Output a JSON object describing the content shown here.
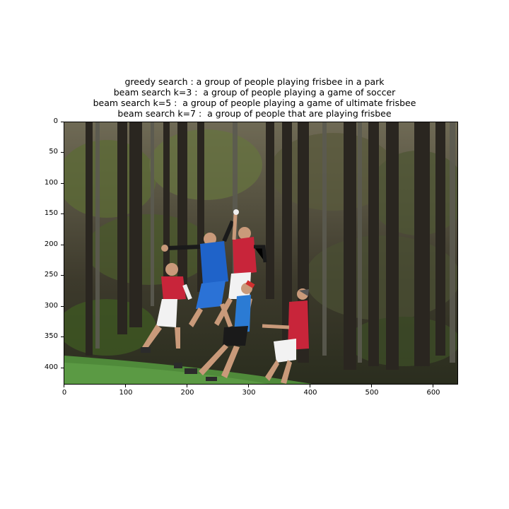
{
  "figure": {
    "title_lines": [
      "greedy search : a group of people playing frisbee in a park",
      "beam search k=3 :  a group of people playing a game of soccer",
      "beam search k=5 :  a group of people playing a game of ultimate frisbee",
      "beam search k=7 :  a group of people that are playing frisbee"
    ],
    "y_ticks": [
      "0",
      "50",
      "100",
      "150",
      "200",
      "250",
      "300",
      "350",
      "400"
    ],
    "x_ticks": [
      "0",
      "100",
      "200",
      "300",
      "400",
      "500",
      "600"
    ]
  },
  "image": {
    "description_icon": "photo-ultimate-frisbee-players-in-forest"
  }
}
